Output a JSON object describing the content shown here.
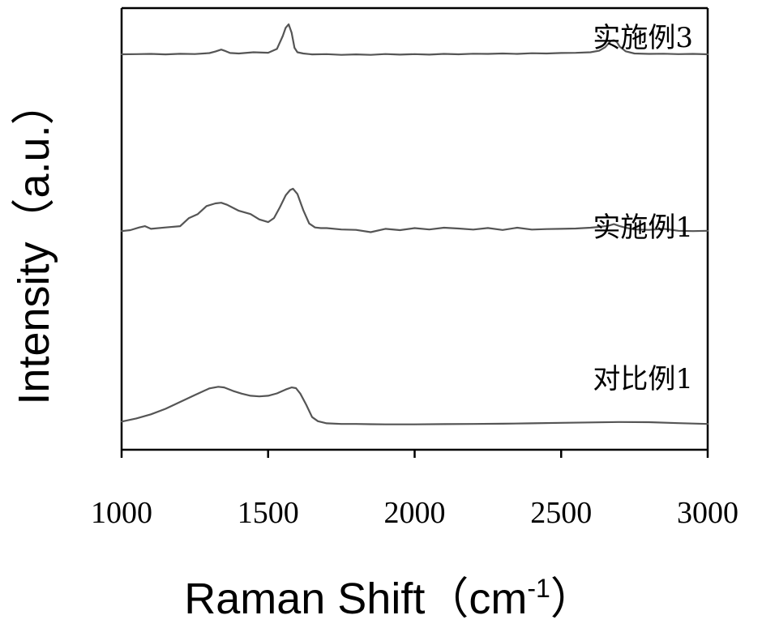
{
  "chart_data": {
    "type": "line",
    "title": "",
    "xlabel": "Raman Shift（cm",
    "xlabel_superscript": "-1",
    "xlabel_close": "）",
    "ylabel": "Intensity（a.u.）",
    "xlim": [
      1000,
      3000
    ],
    "ylim": [
      0,
      1
    ],
    "y_ticks_shown": false,
    "x_ticks": [
      1000,
      1500,
      2000,
      2500,
      3000
    ],
    "x_tick_labels": [
      "1000",
      "1500",
      "2000",
      "2500",
      "3000"
    ],
    "grid": false,
    "line_color": "#555555",
    "series": [
      {
        "name": "实施例3",
        "x": [
          1000,
          1050,
          1100,
          1150,
          1200,
          1250,
          1300,
          1320,
          1340,
          1355,
          1370,
          1400,
          1450,
          1500,
          1530,
          1550,
          1560,
          1570,
          1580,
          1590,
          1600,
          1620,
          1650,
          1700,
          1750,
          1800,
          1850,
          1900,
          1950,
          2000,
          2050,
          2100,
          2150,
          2200,
          2250,
          2300,
          2350,
          2400,
          2450,
          2500,
          2550,
          2600,
          2630,
          2650,
          2670,
          2680,
          2690,
          2700,
          2720,
          2750,
          2800,
          2850,
          2900,
          2950,
          3000
        ],
        "y": [
          0.745,
          0.746,
          0.748,
          0.744,
          0.749,
          0.747,
          0.755,
          0.768,
          0.785,
          0.772,
          0.756,
          0.752,
          0.762,
          0.758,
          0.79,
          0.9,
          0.97,
          1.0,
          0.93,
          0.8,
          0.762,
          0.752,
          0.744,
          0.746,
          0.74,
          0.744,
          0.74,
          0.747,
          0.742,
          0.746,
          0.742,
          0.748,
          0.745,
          0.75,
          0.748,
          0.752,
          0.748,
          0.754,
          0.752,
          0.756,
          0.757,
          0.762,
          0.775,
          0.805,
          0.86,
          0.865,
          0.85,
          0.81,
          0.77,
          0.752,
          0.748,
          0.75,
          0.746,
          0.748,
          0.745
        ]
      },
      {
        "name": "实施例1",
        "x": [
          1000,
          1030,
          1060,
          1080,
          1100,
          1150,
          1200,
          1230,
          1260,
          1290,
          1320,
          1340,
          1360,
          1400,
          1440,
          1470,
          1500,
          1520,
          1540,
          1560,
          1575,
          1585,
          1600,
          1620,
          1640,
          1660,
          1680,
          1700,
          1750,
          1800,
          1850,
          1900,
          1950,
          2000,
          2050,
          2100,
          2150,
          2200,
          2250,
          2300,
          2350,
          2400,
          2450,
          2500,
          2550,
          2600,
          2630,
          2660,
          2680,
          2700,
          2720,
          2750,
          2800,
          2850,
          2900,
          2950,
          3000
        ],
        "y": [
          0.393,
          0.4,
          0.42,
          0.43,
          0.41,
          0.42,
          0.43,
          0.49,
          0.52,
          0.58,
          0.6,
          0.605,
          0.59,
          0.545,
          0.52,
          0.48,
          0.46,
          0.49,
          0.57,
          0.66,
          0.7,
          0.71,
          0.67,
          0.55,
          0.45,
          0.42,
          0.415,
          0.415,
          0.405,
          0.402,
          0.385,
          0.41,
          0.4,
          0.415,
          0.405,
          0.418,
          0.412,
          0.404,
          0.416,
          0.401,
          0.418,
          0.404,
          0.408,
          0.41,
          0.412,
          0.418,
          0.424,
          0.432,
          0.445,
          0.43,
          0.418,
          0.405,
          0.402,
          0.41,
          0.395,
          0.393,
          0.395
        ]
      },
      {
        "name": "对比例1",
        "x": [
          1000,
          1050,
          1100,
          1150,
          1200,
          1250,
          1300,
          1330,
          1350,
          1380,
          1410,
          1440,
          1470,
          1500,
          1530,
          1560,
          1580,
          1595,
          1610,
          1630,
          1650,
          1670,
          1700,
          1750,
          1800,
          1850,
          1900,
          1950,
          2000,
          2100,
          2200,
          2300,
          2400,
          2500,
          2600,
          2700,
          2800,
          2900,
          3000
        ],
        "y": [
          0.057,
          0.08,
          0.11,
          0.15,
          0.2,
          0.25,
          0.298,
          0.31,
          0.305,
          0.28,
          0.26,
          0.245,
          0.24,
          0.245,
          0.262,
          0.29,
          0.305,
          0.3,
          0.26,
          0.18,
          0.09,
          0.06,
          0.045,
          0.04,
          0.04,
          0.038,
          0.037,
          0.037,
          0.037,
          0.039,
          0.04,
          0.042,
          0.045,
          0.048,
          0.051,
          0.054,
          0.053,
          0.046,
          0.04
        ]
      }
    ]
  }
}
